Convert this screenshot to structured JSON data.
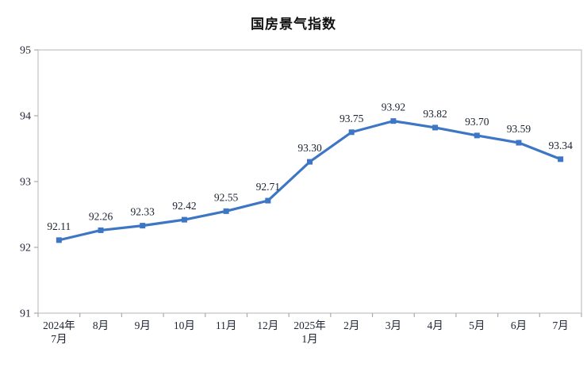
{
  "page": {
    "title": "国房景气指数"
  },
  "chart_data": {
    "type": "line",
    "title": "国房景气指数",
    "categories": [
      [
        "2024年",
        "7月"
      ],
      [
        "8月"
      ],
      [
        "9月"
      ],
      [
        "10月"
      ],
      [
        "11月"
      ],
      [
        "12月"
      ],
      [
        "2025年",
        "1月"
      ],
      [
        "2月"
      ],
      [
        "3月"
      ],
      [
        "4月"
      ],
      [
        "5月"
      ],
      [
        "6月"
      ],
      [
        "7月"
      ]
    ],
    "values": [
      92.11,
      92.26,
      92.33,
      92.42,
      92.55,
      92.71,
      93.3,
      93.75,
      93.92,
      93.82,
      93.7,
      93.59,
      93.34
    ],
    "data_labels": [
      "92.11",
      "92.26",
      "92.33",
      "92.42",
      "92.55",
      "92.71",
      "93.30",
      "93.75",
      "93.92",
      "93.82",
      "93.70",
      "93.59",
      "93.34"
    ],
    "xlabel": "",
    "ylabel": "",
    "ylim": [
      91,
      95
    ],
    "yticks": [
      91,
      92,
      93,
      94,
      95
    ],
    "grid": false,
    "legend": "none",
    "marker": "square",
    "colors": {
      "line": "#3D76C4",
      "marker": "#3D76C4",
      "axis": "#C6C6C6",
      "tick": "#ABABAB",
      "text": "#1E2433",
      "data_label": "#1A2130",
      "title": "#111111",
      "background": "#FFFFFF"
    }
  }
}
